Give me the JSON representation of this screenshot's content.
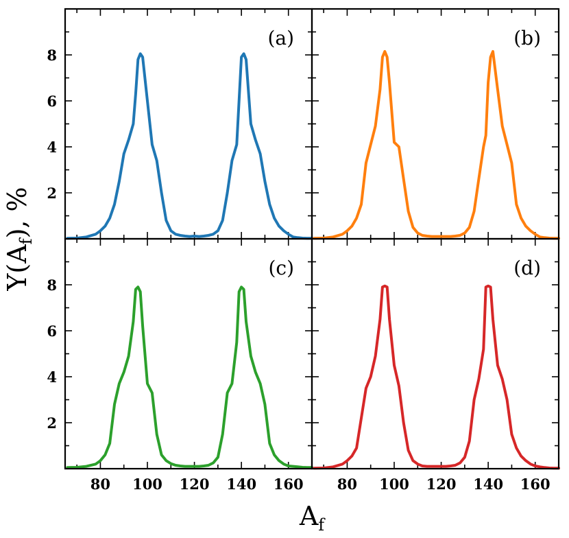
{
  "chart_data": {
    "type": "line",
    "layout": "2x2 grid, shared axes",
    "xlabel": "A",
    "xlabel_sub": "f",
    "ylabel": "Y(A",
    "ylabel_sub": "f",
    "ylabel_suffix": "),  %",
    "xlim": [
      65,
      170
    ],
    "ylim": [
      0,
      10
    ],
    "xticks": [
      80,
      100,
      120,
      140,
      160
    ],
    "yticks": [
      2,
      4,
      6,
      8
    ],
    "panels": [
      {
        "label": "(a)",
        "color": "#1f77b4",
        "series": [
          {
            "name": "Y(Af)",
            "x": [
              66,
              70,
              74,
              78,
              80,
              82,
              84,
              86,
              88,
              90,
              92,
              94,
              95,
              96,
              97,
              98,
              100,
              102,
              104,
              106,
              108,
              110,
              112,
              114,
              116,
              118,
              120,
              122,
              124,
              126,
              128,
              130,
              132,
              134,
              136,
              138,
              139,
              140,
              141,
              142,
              144,
              146,
              148,
              150,
              152,
              154,
              156,
              158,
              160,
              162,
              164,
              166,
              168,
              170
            ],
            "y": [
              0.02,
              0.03,
              0.08,
              0.2,
              0.35,
              0.55,
              0.9,
              1.5,
              2.5,
              3.7,
              4.3,
              5.0,
              6.3,
              7.8,
              8.05,
              7.9,
              6.0,
              4.1,
              3.4,
              2.0,
              0.8,
              0.35,
              0.2,
              0.15,
              0.12,
              0.1,
              0.12,
              0.1,
              0.12,
              0.15,
              0.2,
              0.35,
              0.8,
              2.0,
              3.4,
              4.1,
              6.0,
              7.9,
              8.05,
              7.8,
              5.0,
              4.3,
              3.7,
              2.5,
              1.5,
              0.9,
              0.55,
              0.35,
              0.2,
              0.08,
              0.05,
              0.03,
              0.02,
              0.02
            ]
          }
        ]
      },
      {
        "label": "(b)",
        "color": "#ff7f0e",
        "series": [
          {
            "name": "Y(Af)",
            "x": [
              66,
              70,
              74,
              78,
              80,
              82,
              84,
              86,
              88,
              90,
              92,
              94,
              95,
              96,
              97,
              98,
              100,
              102,
              104,
              106,
              108,
              110,
              112,
              114,
              116,
              118,
              120,
              122,
              124,
              126,
              128,
              130,
              132,
              134,
              136,
              138,
              139,
              140,
              141,
              142,
              144,
              146,
              148,
              150,
              152,
              154,
              156,
              158,
              160,
              162,
              164,
              166,
              168,
              170
            ],
            "y": [
              0.02,
              0.03,
              0.08,
              0.2,
              0.35,
              0.55,
              0.9,
              1.5,
              3.3,
              4.1,
              4.9,
              6.5,
              7.9,
              8.15,
              7.9,
              6.8,
              4.2,
              4.0,
              2.6,
              1.2,
              0.5,
              0.25,
              0.15,
              0.12,
              0.1,
              0.1,
              0.1,
              0.1,
              0.1,
              0.12,
              0.15,
              0.25,
              0.5,
              1.2,
              2.6,
              4.0,
              4.5,
              6.8,
              7.9,
              8.15,
              6.5,
              4.9,
              4.1,
              3.3,
              1.5,
              0.9,
              0.55,
              0.35,
              0.2,
              0.08,
              0.05,
              0.03,
              0.02,
              0.02
            ]
          }
        ]
      },
      {
        "label": "(c)",
        "color": "#2ca02c",
        "series": [
          {
            "name": "Y(Af)",
            "x": [
              66,
              70,
              74,
              78,
              80,
              82,
              84,
              86,
              88,
              90,
              92,
              94,
              95,
              96,
              97,
              98,
              100,
              102,
              104,
              106,
              108,
              110,
              112,
              114,
              116,
              118,
              120,
              122,
              124,
              126,
              128,
              130,
              132,
              134,
              136,
              138,
              139,
              140,
              141,
              142,
              144,
              146,
              148,
              150,
              152,
              154,
              156,
              158,
              160,
              162,
              164,
              166,
              168,
              170
            ],
            "y": [
              0.05,
              0.06,
              0.1,
              0.2,
              0.35,
              0.6,
              1.1,
              2.8,
              3.7,
              4.2,
              4.9,
              6.4,
              7.8,
              7.9,
              7.7,
              6.2,
              3.7,
              3.3,
              1.5,
              0.6,
              0.35,
              0.22,
              0.15,
              0.12,
              0.1,
              0.1,
              0.1,
              0.1,
              0.12,
              0.15,
              0.25,
              0.5,
              1.5,
              3.3,
              3.7,
              5.5,
              7.7,
              7.9,
              7.8,
              6.4,
              4.9,
              4.2,
              3.7,
              2.8,
              1.1,
              0.6,
              0.35,
              0.2,
              0.12,
              0.1,
              0.08,
              0.06,
              0.05,
              0.05
            ]
          }
        ]
      },
      {
        "label": "(d)",
        "color": "#d62728",
        "series": [
          {
            "name": "Y(Af)",
            "x": [
              66,
              70,
              74,
              78,
              80,
              82,
              84,
              86,
              88,
              90,
              92,
              94,
              95,
              96,
              97,
              98,
              100,
              102,
              104,
              106,
              108,
              110,
              112,
              114,
              116,
              118,
              120,
              122,
              124,
              126,
              128,
              130,
              132,
              134,
              136,
              138,
              139,
              140,
              141,
              142,
              144,
              146,
              148,
              150,
              152,
              154,
              156,
              158,
              160,
              162,
              164,
              166,
              168,
              170
            ],
            "y": [
              0.02,
              0.03,
              0.08,
              0.2,
              0.35,
              0.55,
              0.9,
              2.2,
              3.5,
              4.0,
              4.9,
              6.5,
              7.9,
              7.95,
              7.9,
              6.5,
              4.5,
              3.6,
              2.0,
              0.8,
              0.35,
              0.2,
              0.12,
              0.1,
              0.1,
              0.1,
              0.1,
              0.1,
              0.12,
              0.15,
              0.25,
              0.5,
              1.2,
              3.0,
              3.9,
              5.2,
              7.9,
              7.95,
              7.9,
              6.5,
              4.5,
              3.9,
              3.0,
              1.5,
              0.9,
              0.55,
              0.35,
              0.2,
              0.12,
              0.08,
              0.05,
              0.03,
              0.02,
              0.02
            ]
          }
        ]
      }
    ]
  }
}
